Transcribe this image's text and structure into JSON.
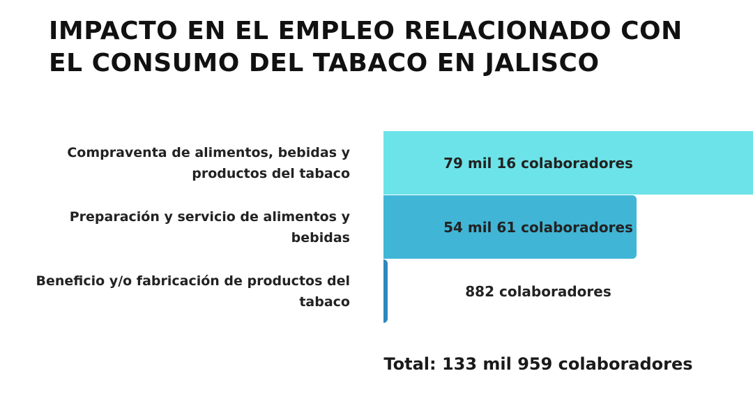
{
  "chart_data": {
    "type": "bar",
    "orientation": "horizontal",
    "title": "IMPACTO EN EL EMPLEO RELACIONADO CON EL CONSUMO DEL TABACO EN JALISCO",
    "categories": [
      "Compraventa de alimentos, bebidas y productos del tabaco",
      "Preparación y servicio de alimentos y bebidas",
      "Beneficio y/o fabricación de productos del tabaco"
    ],
    "values": [
      79016,
      54061,
      882
    ],
    "value_labels": [
      "79 mil 16  colaboradores",
      "54 mil 61  colaboradores",
      "882 colaboradores"
    ],
    "colors": [
      "#6ce3e8",
      "#41b5d6",
      "#2e88ba"
    ],
    "total_label": "Total: 133  mil 959 colaboradores"
  }
}
